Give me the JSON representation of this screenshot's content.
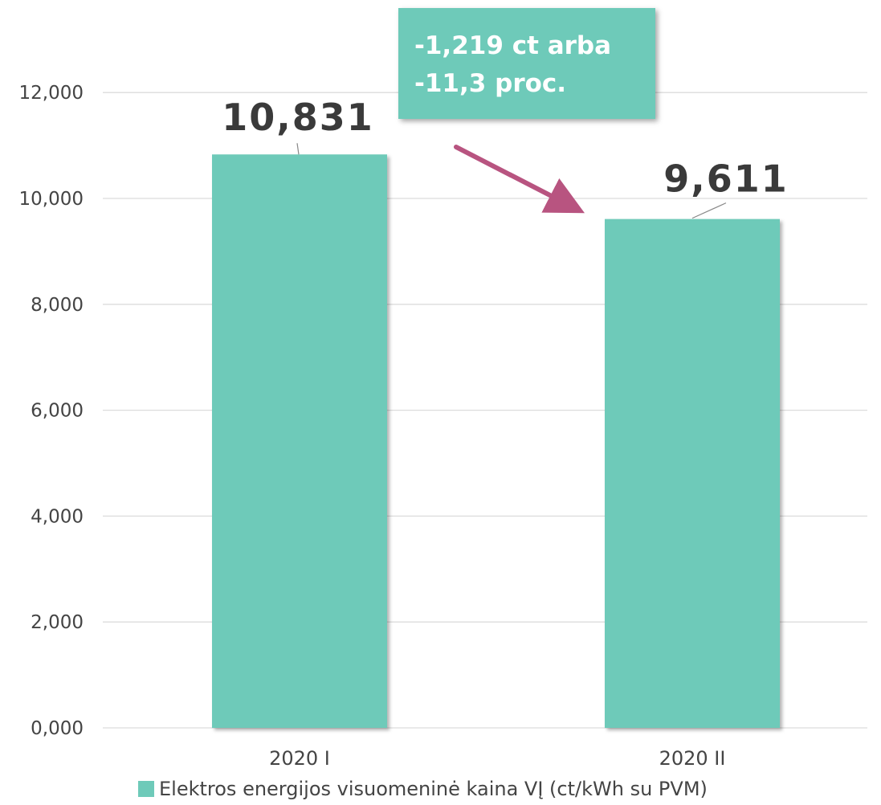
{
  "chart_data": {
    "type": "bar",
    "categories": [
      "2020 I",
      "2020 II"
    ],
    "series": [
      {
        "name": "Elektros energijos visuomeninė kaina VĮ (ct/kWh su PVM)",
        "values": [
          10.831,
          9.611
        ],
        "labels": [
          "10,831",
          "9,611"
        ]
      }
    ],
    "yticks": [
      "0,000",
      "2,000",
      "4,000",
      "6,000",
      "8,000",
      "10,000",
      "12,000"
    ],
    "ylim": [
      0,
      12.5
    ],
    "grid": true,
    "legend_position": "bottom",
    "annotation": {
      "lines": [
        "-1,219 ct arba",
        "-11,3 proc."
      ]
    }
  },
  "colors": {
    "bar": "#6ecab9",
    "callout_bg": "#6ecab9",
    "arrow": "#b85480",
    "grid": "#dcdcdc",
    "text": "#444444"
  }
}
